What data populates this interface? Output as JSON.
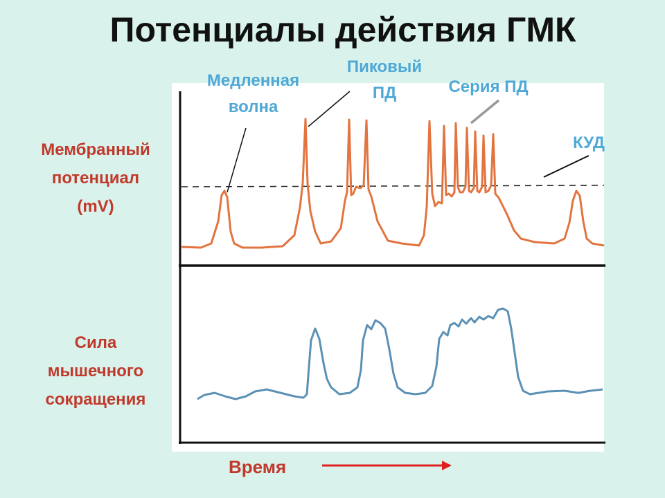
{
  "title": "Потенциалы действия ГМК",
  "y_labels": {
    "membrane_potential": [
      "Мембранный",
      "потенциал",
      "(mV)"
    ],
    "contraction_force": [
      "Сила",
      "мышечного",
      "сокращения"
    ]
  },
  "x_label": "Время",
  "annotations": {
    "slow_wave": [
      "Медленная",
      "волна"
    ],
    "spike_ap": [
      "Пиковый",
      "ПД"
    ],
    "ap_series": [
      "Серия ПД"
    ],
    "threshold": [
      "КУД"
    ]
  },
  "colors": {
    "background": "#d9f2ec",
    "membrane_trace": "#e2743f",
    "force_trace": "#5b90b5",
    "label_red": "#c0392b",
    "label_blue": "#4fa8d6",
    "axis": "#111111",
    "panel": "#ffffff"
  }
}
